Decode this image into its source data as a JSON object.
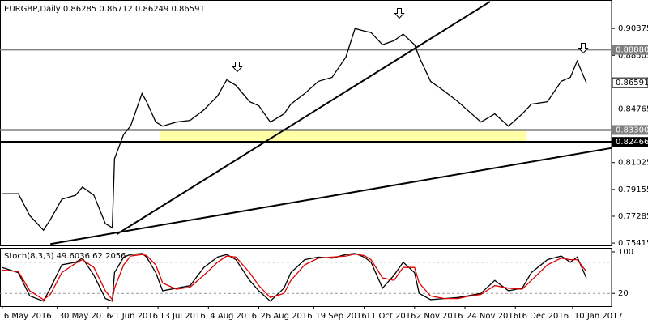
{
  "chart_data": [
    {
      "type": "line",
      "title": "EURGBP,Daily 0.86285 0.86712 0.86249 0.86591",
      "x": [
        "2016-05-06",
        "2016-05-13",
        "2016-05-18",
        "2016-05-24",
        "2016-05-27",
        "2016-06-01",
        "2016-06-07",
        "2016-06-10",
        "2016-06-15",
        "2016-06-20",
        "2016-06-23",
        "2016-06-24",
        "2016-06-28",
        "2016-07-01",
        "2016-07-06",
        "2016-07-08",
        "2016-07-12",
        "2016-07-15",
        "2016-07-21",
        "2016-07-27",
        "2016-08-02",
        "2016-08-08",
        "2016-08-12",
        "2016-08-16",
        "2016-08-22",
        "2016-08-26",
        "2016-08-31",
        "2016-09-06",
        "2016-09-09",
        "2016-09-15",
        "2016-09-21",
        "2016-09-27",
        "2016-10-03",
        "2016-10-07",
        "2016-10-11",
        "2016-10-14",
        "2016-10-19",
        "2016-10-24",
        "2016-10-28",
        "2016-11-02",
        "2016-11-04",
        "2016-11-09",
        "2016-11-15",
        "2016-11-21",
        "2016-11-25",
        "2016-12-01",
        "2016-12-07",
        "2016-12-13",
        "2016-12-19",
        "2016-12-23",
        "2016-12-30",
        "2017-01-05",
        "2017-01-09",
        "2017-01-12",
        "2017-01-16"
      ],
      "series": [
        {
          "color": "#000000",
          "values": [
            0.7886,
            0.7886,
            0.7733,
            0.7631,
            0.7705,
            0.7847,
            0.7875,
            0.7932,
            0.7875,
            0.7677,
            0.7648,
            0.813,
            0.83,
            0.8357,
            0.8584,
            0.8527,
            0.8385,
            0.8357,
            0.8385,
            0.8397,
            0.847,
            0.8567,
            0.868,
            0.8641,
            0.8527,
            0.8499,
            0.8385,
            0.8442,
            0.851,
            0.8584,
            0.8669,
            0.8697,
            0.8838,
            0.9037,
            0.902,
            0.9009,
            0.8924,
            0.8952,
            0.8998,
            0.8924,
            0.8839,
            0.8669,
            0.8601,
            0.8527,
            0.847,
            0.8385,
            0.8442,
            0.8357,
            0.8442,
            0.851,
            0.8527,
            0.8669,
            0.8697,
            0.8811,
            0.86591
          ]
        }
      ],
      "xlim": [
        "2016-05-05",
        "2017-01-27"
      ],
      "xticks": [
        {
          "value": "2016-05-06",
          "label": "6 May 2016"
        },
        {
          "value": "2016-05-30",
          "label": "30 May 2016"
        },
        {
          "value": "2016-06-21",
          "label": "21 Jun 2016"
        },
        {
          "value": "2016-07-13",
          "label": "13 Jul 2016"
        },
        {
          "value": "2016-08-04",
          "label": "4 Aug 2016"
        },
        {
          "value": "2016-08-26",
          "label": "26 Aug 2016"
        },
        {
          "value": "2016-09-19",
          "label": "19 Sep 2016"
        },
        {
          "value": "2016-10-11",
          "label": "11 Oct 2016"
        },
        {
          "value": "2016-11-02",
          "label": "2 Nov 2016"
        },
        {
          "value": "2016-11-24",
          "label": "24 Nov 2016"
        },
        {
          "value": "2016-12-16",
          "label": "16 Dec 2016"
        },
        {
          "value": "2017-01-10",
          "label": "10 Jan 2017"
        }
      ],
      "ylim": [
        0.7525,
        0.9236
      ],
      "yticks": [
        0.90375,
        0.88505,
        0.84765,
        0.81025,
        0.79155,
        0.77285,
        0.75415
      ],
      "levels": [
        {
          "value": 0.8888,
          "label": "0.88880"
        },
        {
          "value": 0.833,
          "label": "0.83300"
        },
        0.82466
      ],
      "level_colors": [
        "#808080",
        "#808080",
        "#000000"
      ],
      "zone": {
        "x": [
          "2016-07-14",
          "2016-12-21"
        ],
        "y": [
          0.82466,
          0.833
        ],
        "color": "#ffffa8"
      },
      "trendlines": [
        {
          "x": [
            "2016-06-25",
            "2016-12-05"
          ],
          "y": [
            0.7603,
            0.9225
          ]
        },
        {
          "x": [
            "2016-05-27",
            "2017-01-27"
          ],
          "y": [
            0.7535,
            0.8204
          ]
        }
      ]
    },
    {
      "type": "line",
      "title": "Stoch(8,3,3) 49.6036 62.2056",
      "series": [
        {
          "color": "#000000",
          "values": [
            70,
            60,
            15,
            5,
            30,
            75,
            80,
            88,
            55,
            10,
            5,
            60,
            90,
            95,
            97,
            90,
            60,
            25,
            30,
            35,
            70,
            90,
            95,
            85,
            45,
            25,
            5,
            30,
            60,
            85,
            90,
            88,
            95,
            97,
            90,
            80,
            30,
            55,
            80,
            60,
            20,
            8,
            10,
            12,
            15,
            20,
            45,
            25,
            30,
            60,
            85,
            92,
            80,
            90,
            49.6036
          ]
        },
        {
          "color": "#e00000",
          "values": [
            65,
            62,
            25,
            8,
            18,
            60,
            78,
            85,
            70,
            25,
            8,
            30,
            75,
            92,
            95,
            93,
            75,
            40,
            28,
            32,
            55,
            80,
            92,
            90,
            60,
            35,
            12,
            20,
            45,
            75,
            88,
            90,
            92,
            96,
            93,
            85,
            50,
            45,
            70,
            70,
            40,
            15,
            10,
            10,
            14,
            18,
            35,
            30,
            28,
            45,
            75,
            88,
            85,
            85,
            62.2056
          ]
        }
      ],
      "ylim": [
        0,
        100
      ],
      "yticks": [
        100,
        20
      ],
      "levels": [
        80,
        20
      ]
    }
  ]
}
